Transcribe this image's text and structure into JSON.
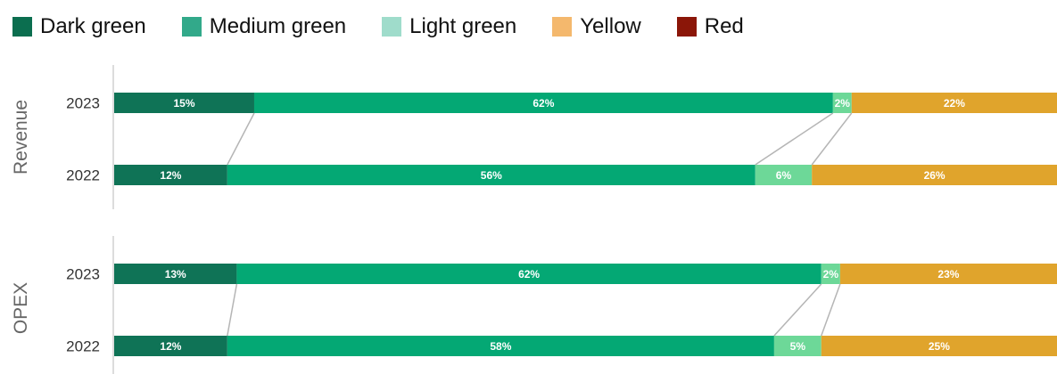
{
  "legend": [
    {
      "label": "Dark green",
      "color": "#0b6e4f"
    },
    {
      "label": "Medium green",
      "color": "#32a98a"
    },
    {
      "label": "Light green",
      "color": "#9fdccb"
    },
    {
      "label": "Yellow",
      "color": "#f4b86d"
    },
    {
      "label": "Red",
      "color": "#8b1608"
    }
  ],
  "chart_data": {
    "type": "bar",
    "orientation": "horizontal",
    "stacked": true,
    "normalized_percent": true,
    "groups": [
      {
        "label": "Revenue",
        "bars": [
          {
            "year": "2023",
            "segments": [
              {
                "category": "Dark green",
                "value": 15,
                "label": "15%",
                "color": "#0f7356"
              },
              {
                "category": "Medium green",
                "value": 62,
                "label": "62%",
                "color": "#04a874"
              },
              {
                "category": "Light green",
                "value": 2,
                "label": "2%",
                "color": "#6dd898"
              },
              {
                "category": "Yellow",
                "value": 22,
                "label": "22%",
                "color": "#e0a42c"
              }
            ]
          },
          {
            "year": "2022",
            "segments": [
              {
                "category": "Dark green",
                "value": 12,
                "label": "12%",
                "color": "#0f7356"
              },
              {
                "category": "Medium green",
                "value": 56,
                "label": "56%",
                "color": "#04a874"
              },
              {
                "category": "Light green",
                "value": 6,
                "label": "6%",
                "color": "#6dd898"
              },
              {
                "category": "Yellow",
                "value": 26,
                "label": "26%",
                "color": "#e0a42c"
              }
            ]
          }
        ]
      },
      {
        "label": "OPEX",
        "bars": [
          {
            "year": "2023",
            "segments": [
              {
                "category": "Dark green",
                "value": 13,
                "label": "13%",
                "color": "#0f7356"
              },
              {
                "category": "Medium green",
                "value": 62,
                "label": "62%",
                "color": "#04a874"
              },
              {
                "category": "Light green",
                "value": 2,
                "label": "2%",
                "color": "#6dd898"
              },
              {
                "category": "Yellow",
                "value": 23,
                "label": "23%",
                "color": "#e0a42c"
              }
            ]
          },
          {
            "year": "2022",
            "segments": [
              {
                "category": "Dark green",
                "value": 12,
                "label": "12%",
                "color": "#0f7356"
              },
              {
                "category": "Medium green",
                "value": 58,
                "label": "58%",
                "color": "#04a874"
              },
              {
                "category": "Light green",
                "value": 5,
                "label": "5%",
                "color": "#6dd898"
              },
              {
                "category": "Yellow",
                "value": 25,
                "label": "25%",
                "color": "#e0a42c"
              }
            ]
          }
        ]
      }
    ]
  }
}
